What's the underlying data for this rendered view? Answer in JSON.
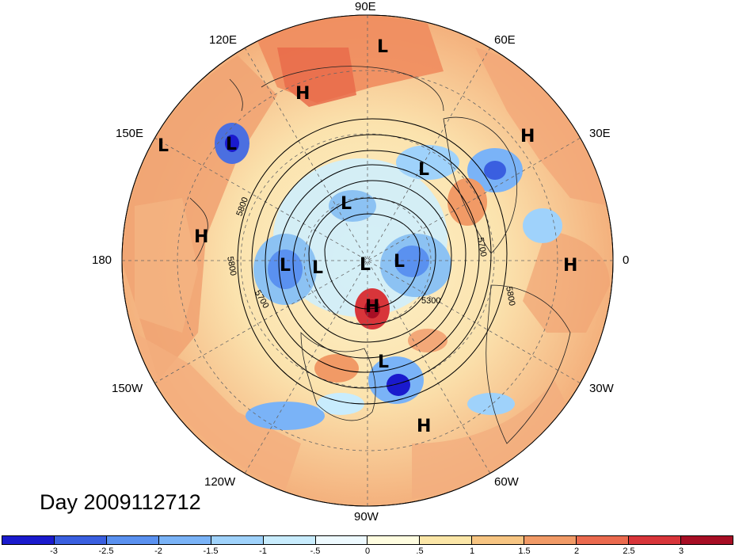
{
  "title": "Day 2009112712",
  "longitude_labels": {
    "e90": "90E",
    "e120": "120E",
    "e60": "60E",
    "e150": "150E",
    "e30": "30E",
    "w180": "180",
    "zero": "0",
    "w150": "150W",
    "w30": "30W",
    "w120": "120W",
    "w60": "60W",
    "w90": "90W"
  },
  "pressure_centers": [
    {
      "id": "l-siberia-north",
      "label": "L"
    },
    {
      "id": "h-eastern-siberia",
      "label": "H"
    },
    {
      "id": "l-kamchatka-west",
      "label": "L"
    },
    {
      "id": "l-kamchatka",
      "label": "L"
    },
    {
      "id": "h-north-pacific",
      "label": "H"
    },
    {
      "id": "h-europe-north",
      "label": "H"
    },
    {
      "id": "l-barents",
      "label": "L"
    },
    {
      "id": "l-east-siberian-sea",
      "label": "L"
    },
    {
      "id": "l-alaska",
      "label": "L"
    },
    {
      "id": "l-beaufort",
      "label": "L"
    },
    {
      "id": "l-arctic",
      "label": "L"
    },
    {
      "id": "l-greenland-sea",
      "label": "L"
    },
    {
      "id": "h-hudson-bay",
      "label": "H"
    },
    {
      "id": "h-africa",
      "label": "H"
    },
    {
      "id": "l-east-coast",
      "label": "L"
    },
    {
      "id": "h-caribbean",
      "label": "H"
    }
  ],
  "contour_labels": [
    "5800",
    "5800",
    "5700",
    "5300",
    "5700",
    "5800"
  ],
  "colorbar": {
    "colors": [
      "#1a1acd",
      "#3a5fe0",
      "#5a91f0",
      "#7ab3f7",
      "#9fd2fb",
      "#c8ecfd",
      "#eefaff",
      "#fffde0",
      "#fbe6a7",
      "#f7c582",
      "#f19a66",
      "#eb6a4e",
      "#d8353a",
      "#a70e24"
    ],
    "tick_labels": [
      "-3",
      "-2.5",
      "-2",
      "-1.5",
      "-1",
      "-.5",
      "0",
      ".5",
      "1",
      "1.5",
      "2",
      "2.5",
      "3"
    ]
  }
}
